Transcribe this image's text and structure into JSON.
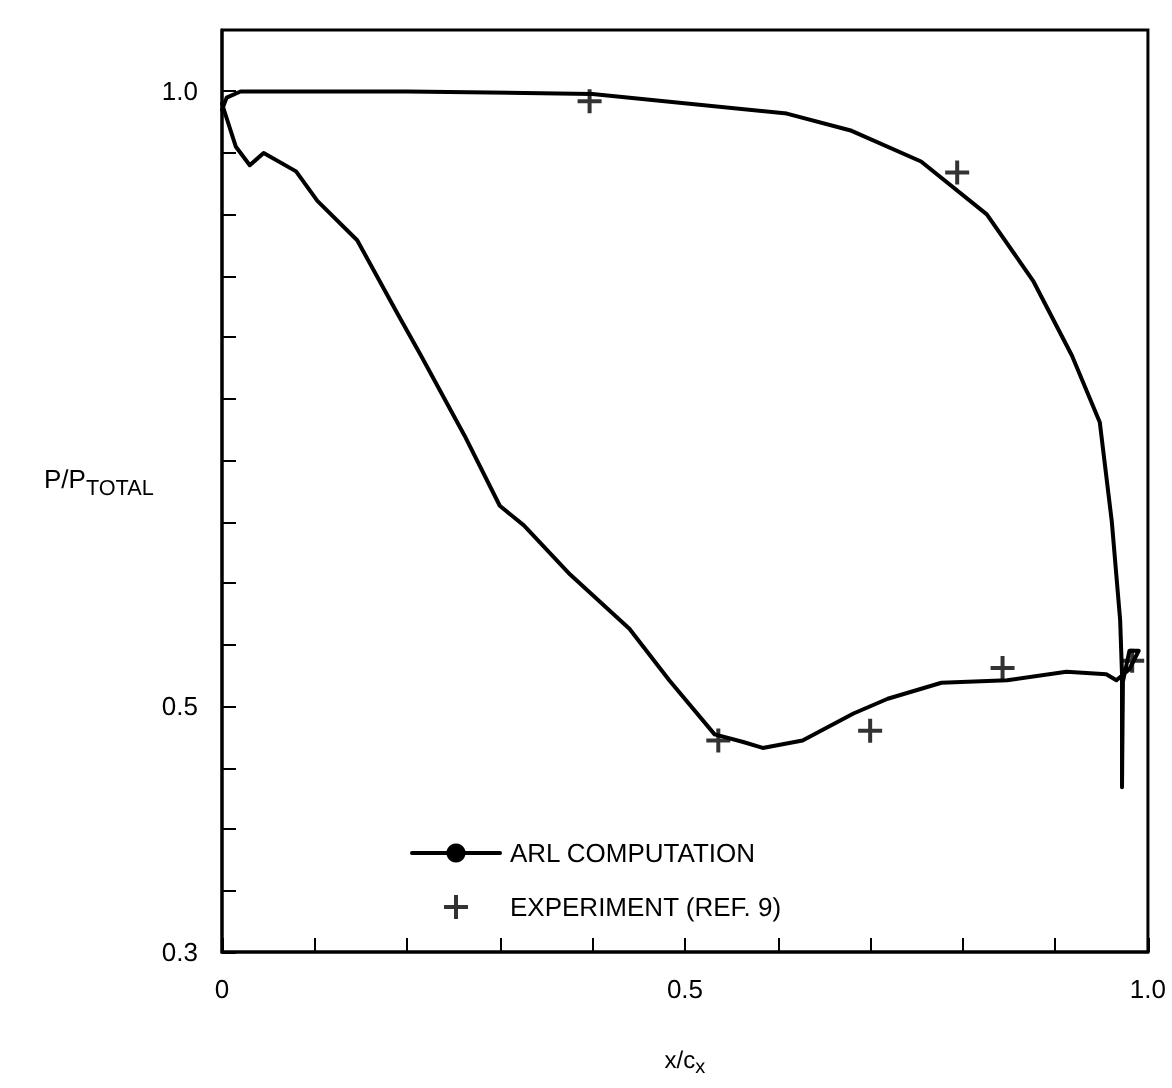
{
  "chart_data": {
    "type": "line",
    "xlabel": "x/c$_{x}$",
    "ylabel": "P/P$_{TOTAL}$",
    "xlim": [
      0,
      1
    ],
    "ylim": [
      0.3,
      1.05
    ],
    "xticks": [
      0,
      {
        "value": 0.1,
        "label": null
      },
      {
        "value": 0.2,
        "label": null
      },
      {
        "value": 0.3,
        "label": null
      },
      {
        "value": 0.4,
        "label": null
      },
      0.5,
      {
        "value": 0.6,
        "label": null
      },
      {
        "value": 0.7,
        "label": null
      },
      {
        "value": 0.8,
        "label": null
      },
      {
        "value": 0.9,
        "label": null
      },
      {
        "value": 1,
        "label": "1.0"
      }
    ],
    "yticks": [
      0.3,
      {
        "value": 0.35,
        "label": null
      },
      {
        "value": 0.4,
        "label": null
      },
      {
        "value": 0.45,
        "label": null
      },
      0.5,
      {
        "value": 0.55,
        "label": null
      },
      {
        "value": 0.6,
        "label": null
      },
      {
        "value": 0.65,
        "label": null
      },
      {
        "value": 0.7,
        "label": null
      },
      {
        "value": 0.75,
        "label": null
      },
      {
        "value": 0.8,
        "label": null
      },
      {
        "value": 0.85,
        "label": null
      },
      {
        "value": 0.9,
        "label": null
      },
      {
        "value": 0.95,
        "label": null
      },
      {
        "value": 1,
        "label": "1.0"
      }
    ],
    "grid": false,
    "legend": "bottom",
    "line_style": "solid",
    "series": [
      {
        "name": "ARL COMPUTATION",
        "color": "#000000",
        "marker": "none",
        "x": [
          0,
          0.015,
          0.03,
          0.045,
          0.08,
          0.103,
          0.146,
          0.189,
          0.215,
          0.262,
          0.3,
          0.326,
          0.376,
          0.44,
          0.483,
          0.532,
          0.562,
          0.584,
          0.627,
          0.682,
          0.719,
          0.777,
          0.848,
          0.912,
          0.955,
          0.966,
          0.98,
          0.99,
          0.98,
          0.973,
          0.972,
          0.972,
          0.97,
          0.961,
          0.948,
          0.918,
          0.876,
          0.826,
          0.755,
          0.68,
          0.61,
          0.4,
          0.2,
          0.02,
          0.005,
          0
        ],
        "values": [
          0.99,
          0.955,
          0.94,
          0.95,
          0.935,
          0.911,
          0.879,
          0.82,
          0.785,
          0.72,
          0.663,
          0.647,
          0.607,
          0.563,
          0.521,
          0.477,
          0.471,
          0.466,
          0.472,
          0.494,
          0.506,
          0.519,
          0.521,
          0.528,
          0.526,
          0.521,
          0.53,
          0.545,
          0.545,
          0.52,
          0.434,
          0.526,
          0.57,
          0.65,
          0.731,
          0.785,
          0.846,
          0.9,
          0.943,
          0.968,
          0.982,
          0.998,
          1.0,
          1.0,
          0.995,
          0.985
        ]
      },
      {
        "name": "EXPERIMENT (REF. 9)",
        "type": "scatter",
        "color": "#000000",
        "marker": "cross",
        "x": [
          0.397,
          0.536,
          0.7,
          0.794,
          0.843,
          0.983
        ],
        "values": [
          0.992,
          0.472,
          0.48,
          0.934,
          0.531,
          0.537
        ]
      }
    ]
  }
}
